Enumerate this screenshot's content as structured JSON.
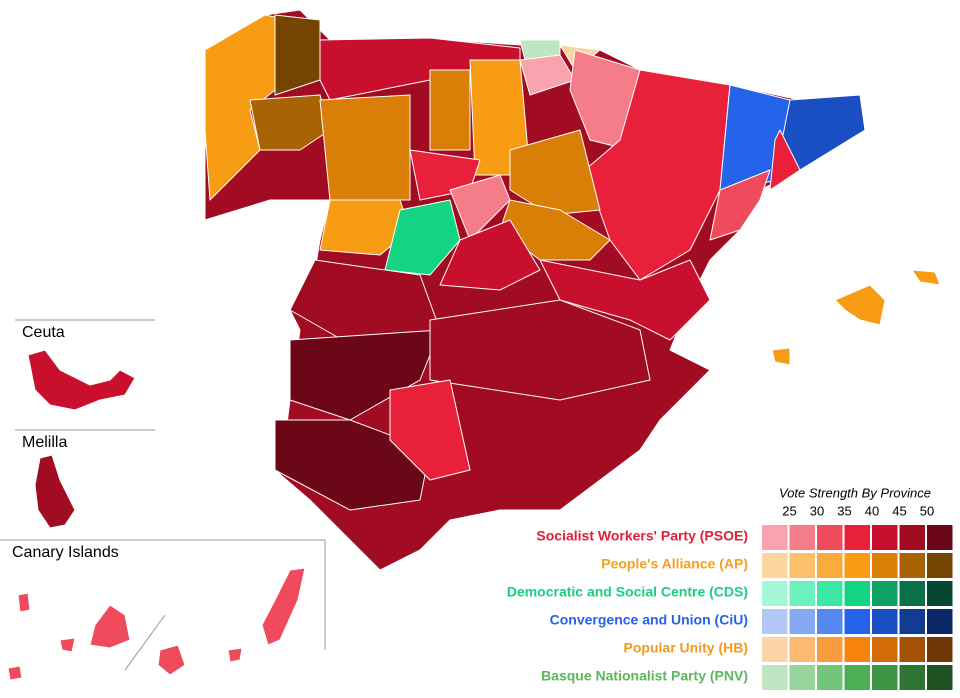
{
  "insets": [
    {
      "label": "Ceuta"
    },
    {
      "label": "Melilla"
    },
    {
      "label": "Canary Islands"
    }
  ],
  "legend": {
    "title": "Vote Strength By Province",
    "thresholds": [
      25,
      30,
      35,
      40,
      45,
      50
    ],
    "parties": [
      {
        "name": "Socialist Workers' Party (PSOE)",
        "color": "#e41e3a",
        "shades": [
          "#f9a3ae",
          "#f57d8a",
          "#f04b5d",
          "#e8203a",
          "#c8102e",
          "#a10c22",
          "#6b0716"
        ]
      },
      {
        "name": "People's Alliance (AP)",
        "color": "#f5a020",
        "shades": [
          "#fdd59e",
          "#fcc06a",
          "#fbaa3c",
          "#f89c14",
          "#d97e06",
          "#a86304",
          "#744400"
        ]
      },
      {
        "name": "Democratic and Social Centre (CDS)",
        "color": "#17d07f",
        "shades": [
          "#a3f7d6",
          "#6cf2bd",
          "#39e9a3",
          "#12d483",
          "#0ea166",
          "#097048",
          "#054730"
        ]
      },
      {
        "name": "Convergence and Union (CiU)",
        "color": "#2563eb",
        "shades": [
          "#b3c8f7",
          "#86a8f2",
          "#5588ee",
          "#2563eb",
          "#1a4fc4",
          "#123b92",
          "#0c2966"
        ]
      },
      {
        "name": "Popular Unity (HB)",
        "color": "#f39a1a",
        "shades": [
          "#fcd4a6",
          "#fbb971",
          "#fa9c3e",
          "#f6830d",
          "#d46a08",
          "#a35207",
          "#6e3805"
        ]
      },
      {
        "name": "Basque Nationalist Party (PNV)",
        "color": "#5cb85c",
        "shades": [
          "#bfe6c2",
          "#97d59c",
          "#72c579",
          "#4daf55",
          "#3b9442",
          "#2e7434",
          "#1f5123"
        ]
      }
    ]
  }
}
